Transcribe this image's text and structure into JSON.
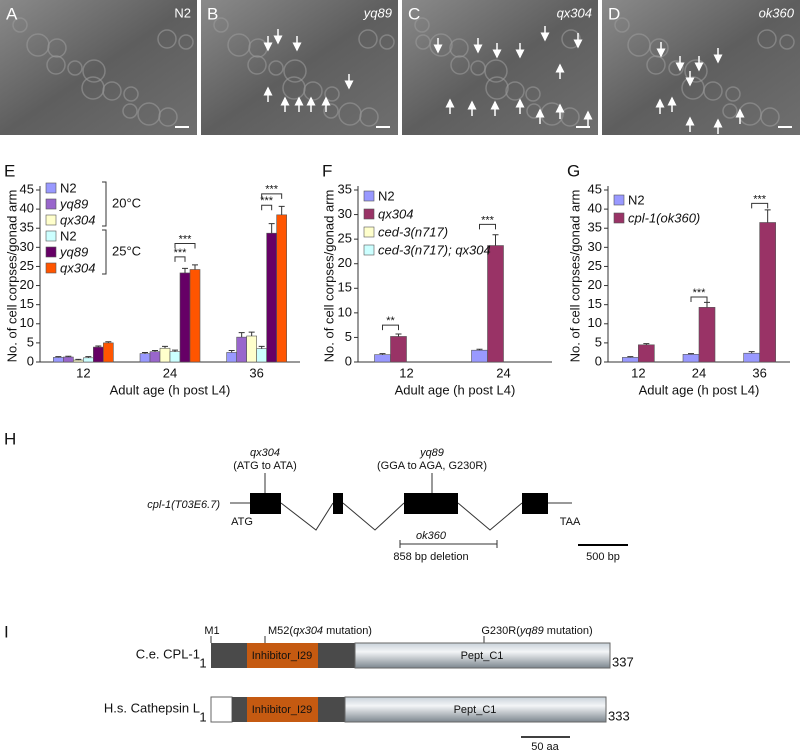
{
  "panels": [
    {
      "label": "A",
      "strain": "N2"
    },
    {
      "label": "B",
      "strain": "yq89"
    },
    {
      "label": "C",
      "strain": "qx304"
    },
    {
      "label": "D",
      "strain": "ok360"
    }
  ],
  "chart_data": [
    {
      "type": "bar",
      "panel_label": "E",
      "x_label": "Adult age (h post L4)",
      "y_label": "No. of cell corpses/gonad arm",
      "categories": [
        "12",
        "24",
        "36"
      ],
      "series": [
        {
          "name": "N2",
          "color": "#9999ff",
          "values": [
            1.2,
            2.2,
            2.5
          ],
          "errors": [
            0.2,
            0.3,
            0.5
          ]
        },
        {
          "name": "yq89",
          "color": "#9966cc",
          "values": [
            1.3,
            2.7,
            6.5
          ],
          "errors": [
            0.2,
            0.3,
            1.2
          ]
        },
        {
          "name": "qx304",
          "color": "#ffffcc",
          "values": [
            0.5,
            3.6,
            6.8
          ],
          "errors": [
            0.2,
            0.5,
            1.0
          ]
        },
        {
          "name": "N2",
          "color": "#ccffff",
          "values": [
            1.1,
            2.7,
            3.5
          ],
          "errors": [
            0.3,
            0.4,
            0.6
          ]
        },
        {
          "name": "yq89",
          "color": "#660066",
          "values": [
            3.9,
            23.3,
            33.7
          ],
          "errors": [
            0.3,
            1.2,
            2.5
          ]
        },
        {
          "name": "qx304",
          "color": "#ff5500",
          "values": [
            5.0,
            24.2,
            38.5
          ],
          "errors": [
            0.3,
            1.2,
            2.2
          ]
        }
      ],
      "legend_groups": [
        "20°C",
        "25°C"
      ],
      "annotations": [
        "***",
        "***",
        "***",
        "***"
      ],
      "ylim": [
        0,
        45
      ],
      "yticks": [
        0,
        5,
        10,
        15,
        20,
        25,
        30,
        35,
        40,
        45
      ]
    },
    {
      "type": "bar",
      "panel_label": "F",
      "x_label": "Adult age (h post L4)",
      "y_label": "No. of cell corpses/gonad arm",
      "categories": [
        "12",
        "24"
      ],
      "series": [
        {
          "name": "N2",
          "color": "#9999ff",
          "values": [
            1.5,
            2.4
          ],
          "errors": [
            0.2,
            0.2
          ]
        },
        {
          "name": "qx304",
          "color": "#993366",
          "values": [
            5.2,
            23.7
          ],
          "errors": [
            0.5,
            2.2
          ]
        },
        {
          "name": "ced-3(n717)",
          "color": "#ffffcc",
          "values": [
            0,
            0
          ],
          "errors": [
            0,
            0
          ]
        },
        {
          "name": "ced-3(n717); qx304",
          "color": "#ccffff",
          "values": [
            0,
            0
          ],
          "errors": [
            0,
            0
          ]
        }
      ],
      "annotations": [
        "**",
        "***"
      ],
      "ylim": [
        0,
        35
      ],
      "yticks": [
        0,
        5,
        10,
        15,
        20,
        25,
        30,
        35
      ]
    },
    {
      "type": "bar",
      "panel_label": "G",
      "x_label": "Adult age (h post L4)",
      "y_label": "No. of cell corpses/gonad arm",
      "categories": [
        "12",
        "24",
        "36"
      ],
      "series": [
        {
          "name": "N2",
          "color": "#9999ff",
          "values": [
            1.2,
            2.0,
            2.3
          ],
          "errors": [
            0.2,
            0.2,
            0.4
          ]
        },
        {
          "name": "cpl-1(ok360)",
          "color": "#993366",
          "values": [
            4.5,
            14.3,
            36.5
          ],
          "errors": [
            0.3,
            1.3,
            3.3
          ]
        }
      ],
      "annotations": [
        "***",
        "***"
      ],
      "ylim": [
        0,
        45
      ],
      "yticks": [
        0,
        5,
        10,
        15,
        20,
        25,
        30,
        35,
        40,
        45
      ]
    }
  ],
  "gene_diagram": {
    "label": "H",
    "gene": "cpl-1(T03E6.7)",
    "start": "ATG",
    "stop": "TAA",
    "mutations": [
      {
        "allele": "qx304",
        "change": "(ATG to ATA)"
      },
      {
        "allele": "yq89",
        "change": "(GGA to AGA, G230R)"
      }
    ],
    "deletion": {
      "allele": "ok360",
      "size": "858 bp deletion"
    },
    "scale": "500 bp"
  },
  "protein_diagram": {
    "label": "I",
    "sites": [
      [
        "M1"
      ],
      [
        "M52(",
        "qx304",
        " mutation)"
      ],
      [
        "G230R(",
        "yq89",
        " mutation)"
      ]
    ],
    "proteins": [
      {
        "name": "C.e. CPL-1",
        "start": "1",
        "domains": [
          "Inhibitor_I29",
          "Pept_C1"
        ],
        "end": "337"
      },
      {
        "name": "H.s. Cathepsin L",
        "start": "1",
        "domains": [
          "Inhibitor_I29",
          "Pept_C1"
        ],
        "end": "333"
      }
    ],
    "scale": "50 aa"
  }
}
